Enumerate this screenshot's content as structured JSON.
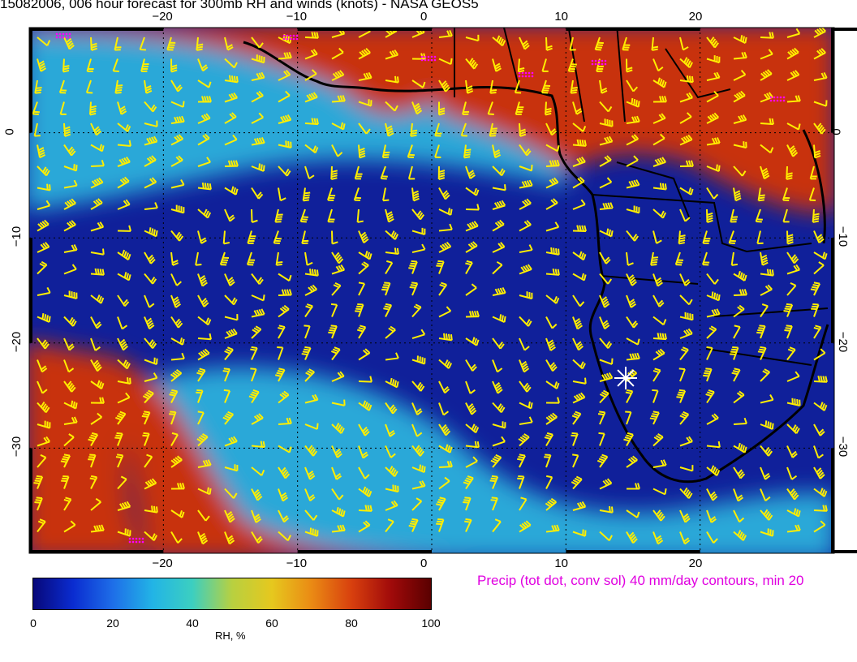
{
  "title": "15082006, 006 hour forecast for 300mb RH and winds (knots) - NASA GEOS5",
  "top_lon_labels": [
    "−20",
    "−10",
    "0",
    "10",
    "20"
  ],
  "bottom_lon_labels": [
    "−20",
    "−10",
    "0",
    "10",
    "20"
  ],
  "left_lat_labels": [
    "0",
    "−10",
    "−20",
    "−30"
  ],
  "right_lat_labels": [
    "0",
    "−10",
    "−20",
    "−30"
  ],
  "precip_note": "Precip (tot dot, conv sol) 40 mm/day contours, min 20",
  "colorbar": {
    "ticks": [
      "0",
      "20",
      "40",
      "60",
      "80",
      "100"
    ],
    "unit": "RH, %",
    "colors": [
      "#08087a",
      "#0a2cd0",
      "#1e6ee8",
      "#22b4e6",
      "#3ccfc0",
      "#b8d040",
      "#e6c81e",
      "#ea8a14",
      "#d8400e",
      "#a00a0a",
      "#5a0000"
    ]
  },
  "map": {
    "lon_range": [
      -30,
      30
    ],
    "lat_range": [
      -40,
      10
    ],
    "marker": "white-star",
    "colors": {
      "dry": "#10209a",
      "moist": "#2aa8d8",
      "wet": "#c8320c",
      "barb": "#ffee00",
      "coast": "#000000",
      "precip": "#ff00ff"
    }
  }
}
